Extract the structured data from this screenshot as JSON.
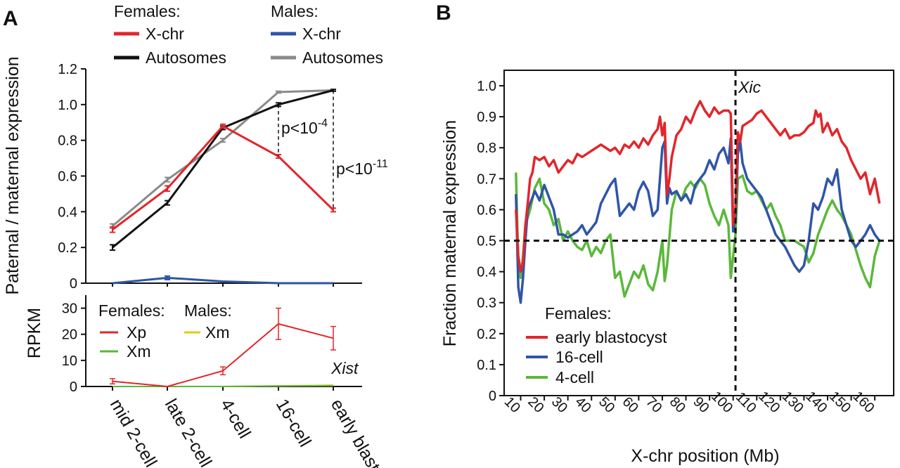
{
  "colors": {
    "female_x": "#e2262b",
    "female_auto": "#111111",
    "male_x": "#2f55a8",
    "male_auto": "#8a8a8a",
    "xm_green": "#5bb83a",
    "xm_yellow": "#f1c40f",
    "early_blast": "#e2262b",
    "cell16": "#2f55a8",
    "cell4": "#5bb83a"
  },
  "panels": {
    "a": "A",
    "b": "B"
  },
  "chart_data": [
    {
      "type": "line",
      "panel": "A-top",
      "ylabel": "Paternal / maternal expression",
      "ylim": [
        0,
        1.2
      ],
      "yticks": [
        "0",
        "0.2",
        "0.4",
        "0.6",
        "0.8",
        "1.0",
        "1.2"
      ],
      "categories": [
        "mid 2-cell",
        "late 2-cell",
        "4-cell",
        "16-cell",
        "early blast"
      ],
      "legend": {
        "group_females": "Females:",
        "group_males": "Males:",
        "female_x": "X-chr",
        "female_auto": "Autosomes",
        "male_x": "X-chr",
        "male_auto": "Autosomes"
      },
      "series": [
        {
          "name": "Females X-chr",
          "values": [
            0.3,
            0.53,
            0.88,
            0.71,
            0.41
          ],
          "errors": [
            0.015,
            0.015,
            0.01,
            0.01,
            0.01
          ]
        },
        {
          "name": "Females Autosomes",
          "values": [
            0.2,
            0.45,
            0.87,
            1.0,
            1.08
          ],
          "errors": [
            0.015,
            0.012,
            0.01,
            0.01,
            0.005
          ]
        },
        {
          "name": "Males X-chr",
          "values": [
            0.0,
            0.03,
            0.01,
            0.0,
            0.0
          ],
          "errors": [
            0,
            0.01,
            0,
            0,
            0
          ]
        },
        {
          "name": "Males Autosomes",
          "values": [
            0.32,
            0.58,
            0.8,
            1.07,
            1.08
          ],
          "errors": [
            0.012,
            0.012,
            0.01,
            0.005,
            0.005
          ]
        }
      ],
      "annotations": [
        {
          "base": "p<10",
          "exp": "-4",
          "x_index": 3
        },
        {
          "base": "p<10",
          "exp": "-11",
          "x_index": 4
        }
      ]
    },
    {
      "type": "line",
      "panel": "A-bottom",
      "ylabel": "RPKM",
      "ylim": [
        0,
        35
      ],
      "yticks": [
        "0",
        "10",
        "20",
        "30"
      ],
      "categories": [
        "mid 2-cell",
        "late 2-cell",
        "4-cell",
        "16-cell",
        "early blast"
      ],
      "annotation": "Xist",
      "legend": {
        "group_females": "Females:",
        "group_males": "Males:",
        "female_xp": "Xp",
        "female_xm": "Xm",
        "male_xm": "Xm"
      },
      "series": [
        {
          "name": "Females Xp",
          "values": [
            2,
            0,
            6,
            24,
            18.5
          ],
          "errors": [
            1,
            0,
            1.5,
            6,
            4.5
          ]
        },
        {
          "name": "Females Xm",
          "values": [
            0,
            0,
            0,
            0.2,
            0.3
          ],
          "errors": [
            0,
            0,
            0,
            0,
            0
          ]
        },
        {
          "name": "Males Xm",
          "values": [
            0,
            0,
            0,
            0.2,
            0.5
          ],
          "errors": [
            0,
            0,
            0,
            0,
            0
          ]
        }
      ]
    },
    {
      "type": "line",
      "panel": "B",
      "xlabel": "X-chr position (Mb)",
      "ylabel": "Fraction maternal expression",
      "xlim": [
        3,
        168
      ],
      "ylim": [
        0,
        1.05
      ],
      "xticks": [
        "10",
        "20",
        "30",
        "40",
        "50",
        "60",
        "70",
        "80",
        "90",
        "100",
        "110",
        "120",
        "130",
        "140",
        "150",
        "160"
      ],
      "yticks": [
        "0",
        "0.1",
        "0.2",
        "0.3",
        "0.4",
        "0.5",
        "0.6",
        "0.7",
        "0.8",
        "0.9",
        "1.0"
      ],
      "reference_lines": {
        "y": 0.5,
        "x": 101
      },
      "annotation": "Xic",
      "legend": {
        "title": "Females:",
        "items": [
          "early blastocyst",
          "16-cell",
          "4-cell"
        ]
      },
      "series": [
        {
          "name": "early blastocyst",
          "x": [
            8,
            9,
            10,
            11,
            12,
            13,
            14,
            15,
            16,
            18,
            20,
            22,
            24,
            26,
            28,
            30,
            32,
            34,
            36,
            38,
            40,
            42,
            44,
            46,
            48,
            50,
            52,
            54,
            56,
            58,
            60,
            62,
            64,
            66,
            68,
            69,
            70,
            71,
            72,
            73,
            74,
            76,
            78,
            80,
            82,
            84,
            86,
            88,
            90,
            92,
            94,
            96,
            98,
            99,
            100,
            101,
            102,
            103,
            104,
            106,
            108,
            110,
            112,
            114,
            116,
            118,
            120,
            122,
            124,
            126,
            128,
            130,
            132,
            134,
            135,
            136,
            137,
            138,
            140,
            142,
            144,
            146,
            148,
            150,
            152,
            154,
            156,
            158,
            160,
            162
          ],
          "y": [
            0.6,
            0.45,
            0.4,
            0.43,
            0.55,
            0.62,
            0.7,
            0.72,
            0.77,
            0.76,
            0.77,
            0.74,
            0.76,
            0.72,
            0.74,
            0.76,
            0.75,
            0.78,
            0.77,
            0.78,
            0.79,
            0.8,
            0.81,
            0.8,
            0.79,
            0.8,
            0.78,
            0.81,
            0.8,
            0.82,
            0.8,
            0.83,
            0.81,
            0.84,
            0.86,
            0.9,
            0.84,
            0.88,
            0.65,
            0.7,
            0.77,
            0.84,
            0.86,
            0.9,
            0.88,
            0.92,
            0.95,
            0.92,
            0.9,
            0.93,
            0.91,
            0.92,
            0.92,
            0.91,
            0.55,
            0.6,
            0.85,
            0.82,
            0.87,
            0.88,
            0.89,
            0.91,
            0.92,
            0.9,
            0.88,
            0.86,
            0.84,
            0.86,
            0.83,
            0.84,
            0.84,
            0.85,
            0.87,
            0.88,
            0.92,
            0.9,
            0.91,
            0.85,
            0.88,
            0.84,
            0.86,
            0.82,
            0.8,
            0.76,
            0.73,
            0.7,
            0.72,
            0.65,
            0.7,
            0.62
          ]
        },
        {
          "name": "16-cell",
          "x": [
            8,
            9,
            10,
            11,
            12,
            13,
            14,
            16,
            18,
            20,
            22,
            24,
            26,
            28,
            30,
            32,
            34,
            36,
            38,
            40,
            42,
            44,
            46,
            48,
            50,
            52,
            54,
            56,
            58,
            60,
            62,
            64,
            66,
            68,
            70,
            71,
            72,
            73,
            74,
            76,
            78,
            80,
            82,
            84,
            86,
            88,
            90,
            92,
            94,
            96,
            98,
            99,
            100,
            101,
            102,
            103,
            104,
            106,
            108,
            110,
            112,
            114,
            116,
            118,
            120,
            122,
            124,
            126,
            128,
            130,
            132,
            134,
            136,
            138,
            140,
            142,
            144,
            146,
            148,
            150,
            152,
            154,
            156,
            158,
            160,
            162
          ],
          "y": [
            0.65,
            0.35,
            0.3,
            0.38,
            0.5,
            0.6,
            0.62,
            0.66,
            0.63,
            0.68,
            0.64,
            0.6,
            0.52,
            0.52,
            0.51,
            0.52,
            0.53,
            0.55,
            0.52,
            0.54,
            0.56,
            0.62,
            0.65,
            0.68,
            0.7,
            0.58,
            0.6,
            0.62,
            0.6,
            0.66,
            0.69,
            0.66,
            0.58,
            0.6,
            0.8,
            0.82,
            0.62,
            0.67,
            0.65,
            0.66,
            0.63,
            0.65,
            0.62,
            0.68,
            0.7,
            0.72,
            0.76,
            0.73,
            0.78,
            0.8,
            0.75,
            0.83,
            0.53,
            0.57,
            0.78,
            0.82,
            0.75,
            0.7,
            0.68,
            0.66,
            0.64,
            0.6,
            0.56,
            0.52,
            0.5,
            0.48,
            0.45,
            0.42,
            0.4,
            0.42,
            0.5,
            0.62,
            0.6,
            0.64,
            0.7,
            0.68,
            0.73,
            0.6,
            0.55,
            0.5,
            0.48,
            0.5,
            0.52,
            0.55,
            0.52,
            0.5
          ]
        },
        {
          "name": "4-cell",
          "x": [
            8,
            9,
            10,
            11,
            12,
            14,
            16,
            18,
            20,
            22,
            24,
            26,
            28,
            30,
            32,
            34,
            36,
            38,
            40,
            42,
            44,
            46,
            48,
            50,
            52,
            54,
            56,
            58,
            60,
            62,
            64,
            66,
            68,
            70,
            71,
            72,
            74,
            76,
            78,
            80,
            82,
            84,
            86,
            88,
            90,
            92,
            94,
            96,
            98,
            99,
            100,
            101,
            102,
            104,
            106,
            108,
            110,
            112,
            114,
            116,
            118,
            120,
            122,
            124,
            126,
            128,
            130,
            132,
            134,
            136,
            138,
            140,
            142,
            144,
            146,
            148,
            150,
            152,
            154,
            156,
            158,
            160,
            162
          ],
          "y": [
            0.72,
            0.42,
            0.38,
            0.45,
            0.55,
            0.6,
            0.67,
            0.7,
            0.62,
            0.6,
            0.55,
            0.57,
            0.5,
            0.53,
            0.5,
            0.48,
            0.47,
            0.5,
            0.45,
            0.48,
            0.46,
            0.5,
            0.52,
            0.38,
            0.4,
            0.32,
            0.36,
            0.4,
            0.38,
            0.42,
            0.36,
            0.34,
            0.4,
            0.5,
            0.37,
            0.42,
            0.6,
            0.66,
            0.63,
            0.67,
            0.69,
            0.67,
            0.7,
            0.68,
            0.62,
            0.58,
            0.55,
            0.6,
            0.55,
            0.38,
            0.45,
            0.52,
            0.7,
            0.71,
            0.66,
            0.65,
            0.66,
            0.63,
            0.6,
            0.62,
            0.58,
            0.55,
            0.5,
            0.5,
            0.5,
            0.49,
            0.48,
            0.43,
            0.46,
            0.52,
            0.56,
            0.6,
            0.63,
            0.6,
            0.58,
            0.55,
            0.52,
            0.47,
            0.42,
            0.38,
            0.35,
            0.45,
            0.5
          ]
        }
      ]
    }
  ]
}
